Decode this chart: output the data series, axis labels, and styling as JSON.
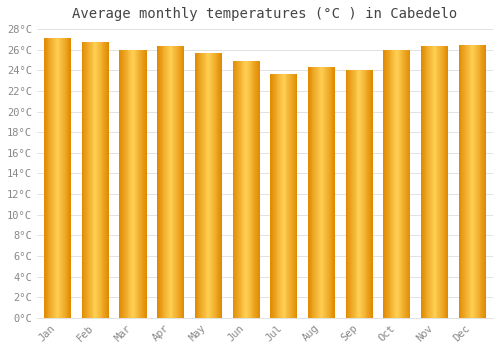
{
  "title": "Average monthly temperatures (°C ) in Cabedelo",
  "months": [
    "Jan",
    "Feb",
    "Mar",
    "Apr",
    "May",
    "Jun",
    "Jul",
    "Aug",
    "Sep",
    "Oct",
    "Nov",
    "Dec"
  ],
  "values": [
    27.1,
    26.7,
    26.0,
    26.4,
    25.7,
    24.9,
    23.6,
    24.3,
    24.0,
    26.0,
    26.4,
    26.5
  ],
  "bar_color_center": "#FFD055",
  "bar_color_edge": "#E08800",
  "background_color": "#FFFFFF",
  "grid_color": "#DDDDDD",
  "ylim": [
    0,
    28
  ],
  "ytick_step": 2,
  "title_fontsize": 10,
  "tick_fontsize": 7.5,
  "text_color": "#888888",
  "title_color": "#444444"
}
